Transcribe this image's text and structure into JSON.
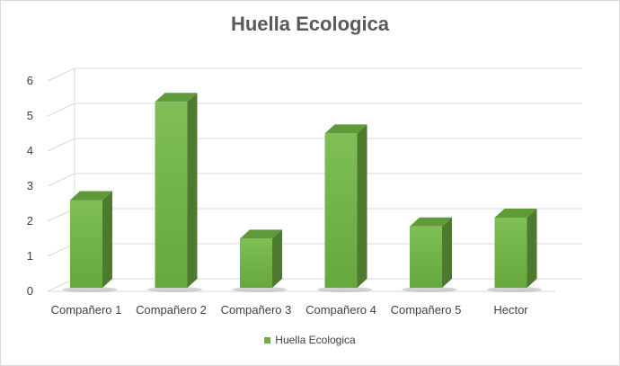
{
  "chart_data": {
    "type": "bar",
    "style": "3d-column",
    "title": "Huella Ecologica",
    "categories": [
      "Compañero 1",
      "Compañero 2",
      "Compañero 3",
      "Compañero 4",
      "Compañero 5",
      "Hector"
    ],
    "series": [
      {
        "name": "Huella Ecologica",
        "values": [
          2.5,
          5.3,
          1.4,
          4.4,
          1.75,
          2.0
        ]
      }
    ],
    "yticks": [
      "0",
      "1",
      "2",
      "3",
      "4",
      "5",
      "6"
    ],
    "ylim": [
      0,
      6
    ],
    "grid": true,
    "legend_position": "bottom",
    "colors": {
      "bar_front": "#70ad47",
      "bar_side": "#4e7a30",
      "bar_top": "#5f9a3a",
      "grid": "#d9d9d9"
    }
  }
}
